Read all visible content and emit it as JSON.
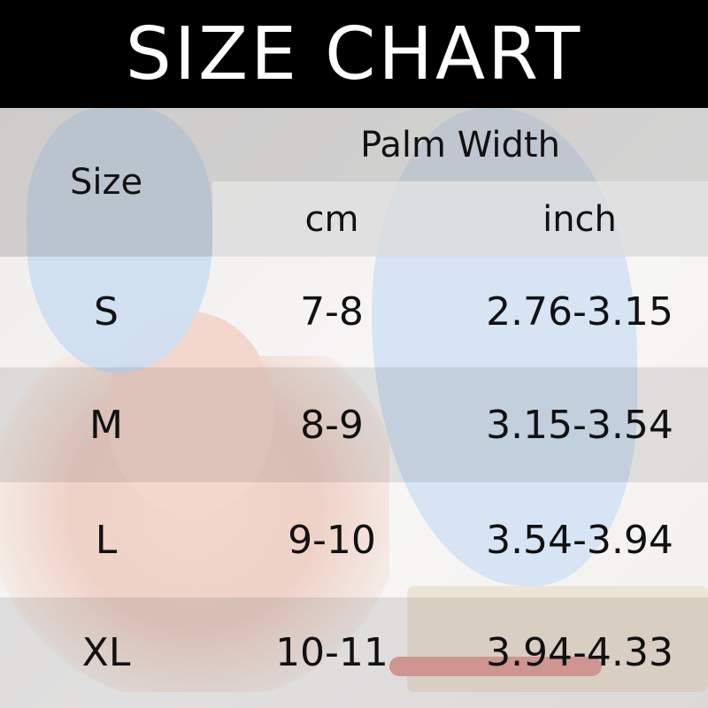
{
  "title": "SIZE CHART",
  "table": {
    "size_header": "Size",
    "group_header": "Palm Width",
    "unit_headers": [
      "cm",
      "inch"
    ],
    "rows": [
      {
        "size": "S",
        "cm": "7-8",
        "inch": "2.76-3.15"
      },
      {
        "size": "M",
        "cm": "8-9",
        "inch": "3.15-3.54"
      },
      {
        "size": "L",
        "cm": "9-10",
        "inch": "3.54-3.94"
      },
      {
        "size": "XL",
        "cm": "10-11",
        "inch": "3.94-4.33"
      }
    ]
  },
  "colors": {
    "header_bg": "#000000",
    "header_text": "#ffffff",
    "glove": "#9cc0e6"
  }
}
